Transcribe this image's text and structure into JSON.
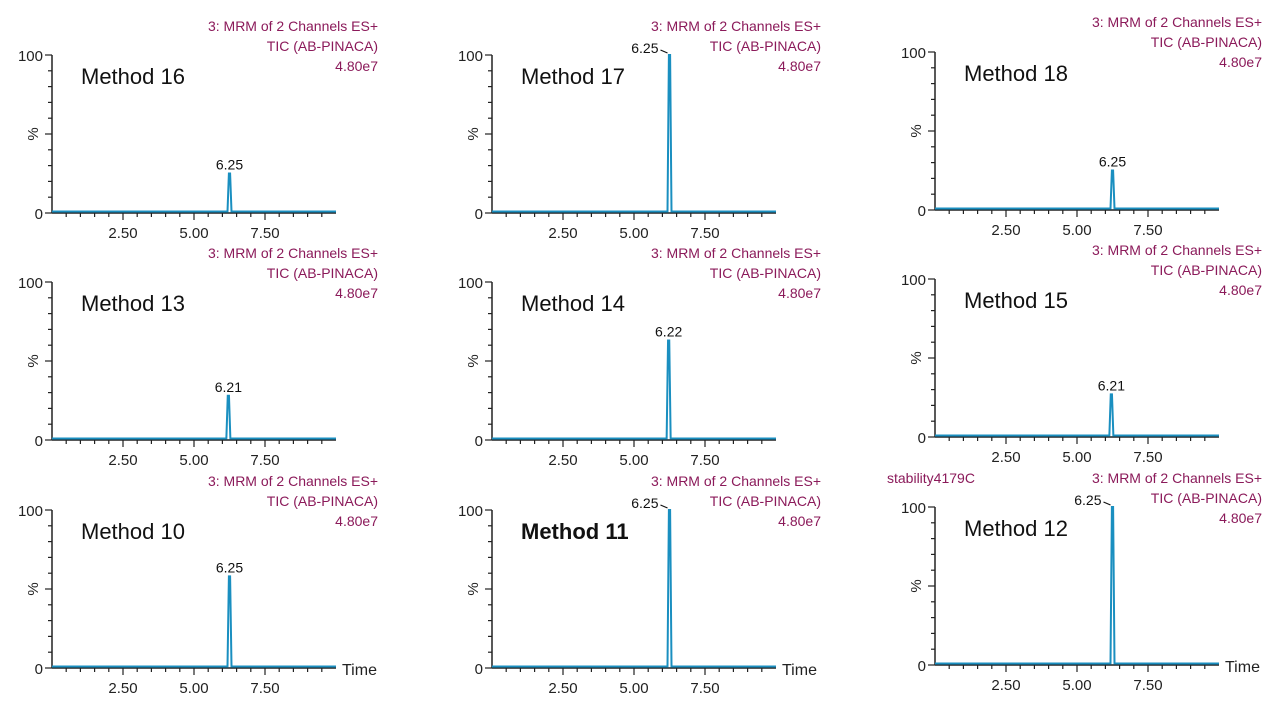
{
  "chart_data": [
    {
      "type": "line",
      "title": "Method 16",
      "header": [
        "3: MRM of 2 Channels ES+",
        "TIC (AB-PINACA)",
        "4.80e7"
      ],
      "peak_label": "6.25",
      "peak_rt": 6.25,
      "peak_height": 25,
      "xlim": [
        0,
        10
      ],
      "ylim": [
        0,
        100
      ],
      "xticks": [
        "2.50",
        "5.00",
        "7.50"
      ],
      "yticks": [
        "0",
        "100"
      ],
      "ylabel": "%",
      "xlabel": ""
    },
    {
      "type": "line",
      "title": "Method 17",
      "header": [
        "3: MRM of 2 Channels ES+",
        "TIC (AB-PINACA)",
        "4.80e7"
      ],
      "peak_label": "6.25",
      "peak_rt": 6.25,
      "peak_height": 100,
      "xlim": [
        0,
        10
      ],
      "ylim": [
        0,
        100
      ],
      "xticks": [
        "2.50",
        "5.00",
        "7.50"
      ],
      "yticks": [
        "0",
        "100"
      ],
      "ylabel": "%",
      "xlabel": ""
    },
    {
      "type": "line",
      "title": "Method 18",
      "header": [
        "3: MRM of 2 Channels ES+",
        "TIC (AB-PINACA)",
        "4.80e7"
      ],
      "peak_label": "6.25",
      "peak_rt": 6.25,
      "peak_height": 25,
      "xlim": [
        0,
        10
      ],
      "ylim": [
        0,
        100
      ],
      "xticks": [
        "2.50",
        "5.00",
        "7.50"
      ],
      "yticks": [
        "0",
        "100"
      ],
      "ylabel": "%",
      "xlabel": ""
    },
    {
      "type": "line",
      "title": "Method 13",
      "header": [
        "3: MRM of 2 Channels ES+",
        "TIC (AB-PINACA)",
        "4.80e7"
      ],
      "peak_label": "6.21",
      "peak_rt": 6.21,
      "peak_height": 28,
      "xlim": [
        0,
        10
      ],
      "ylim": [
        0,
        100
      ],
      "xticks": [
        "2.50",
        "5.00",
        "7.50"
      ],
      "yticks": [
        "0",
        "100"
      ],
      "ylabel": "%",
      "xlabel": ""
    },
    {
      "type": "line",
      "title": "Method 14",
      "header": [
        "3: MRM of 2 Channels ES+",
        "TIC (AB-PINACA)",
        "4.80e7"
      ],
      "peak_label": "6.22",
      "peak_rt": 6.22,
      "peak_height": 63,
      "xlim": [
        0,
        10
      ],
      "ylim": [
        0,
        100
      ],
      "xticks": [
        "2.50",
        "5.00",
        "7.50"
      ],
      "yticks": [
        "0",
        "100"
      ],
      "ylabel": "%",
      "xlabel": ""
    },
    {
      "type": "line",
      "title": "Method 15",
      "header": [
        "3: MRM of 2 Channels ES+",
        "TIC (AB-PINACA)",
        "4.80e7"
      ],
      "peak_label": "6.21",
      "peak_rt": 6.21,
      "peak_height": 27,
      "xlim": [
        0,
        10
      ],
      "ylim": [
        0,
        100
      ],
      "xticks": [
        "2.50",
        "5.00",
        "7.50"
      ],
      "yticks": [
        "0",
        "100"
      ],
      "ylabel": "%",
      "xlabel": ""
    },
    {
      "type": "line",
      "title": "Method 10",
      "header": [
        "3: MRM of 2 Channels ES+",
        "TIC (AB-PINACA)",
        "4.80e7"
      ],
      "peak_label": "6.25",
      "peak_rt": 6.25,
      "peak_height": 58,
      "xlim": [
        0,
        10
      ],
      "ylim": [
        0,
        100
      ],
      "xticks": [
        "2.50",
        "5.00",
        "7.50"
      ],
      "yticks": [
        "0",
        "100"
      ],
      "ylabel": "%",
      "xlabel": "Time"
    },
    {
      "type": "line",
      "title": "Method 11",
      "bold": true,
      "header": [
        "3: MRM of 2 Channels ES+",
        "TIC (AB-PINACA)",
        "4.80e7"
      ],
      "peak_label": "6.25",
      "peak_rt": 6.25,
      "peak_height": 100,
      "xlim": [
        0,
        10
      ],
      "ylim": [
        0,
        100
      ],
      "xticks": [
        "2.50",
        "5.00",
        "7.50"
      ],
      "yticks": [
        "0",
        "100"
      ],
      "ylabel": "%",
      "xlabel": "Time"
    },
    {
      "type": "line",
      "title": "Method 12",
      "sample": "stability4179C",
      "header": [
        "3: MRM of 2 Channels ES+",
        "TIC (AB-PINACA)",
        "4.80e7"
      ],
      "peak_label": "6.25",
      "peak_rt": 6.25,
      "peak_height": 100,
      "xlim": [
        0,
        10
      ],
      "ylim": [
        0,
        100
      ],
      "xticks": [
        "2.50",
        "5.00",
        "7.50"
      ],
      "yticks": [
        "0",
        "100"
      ],
      "ylabel": "%",
      "xlabel": "Time"
    }
  ],
  "colors": {
    "trace": "#1a8fc0",
    "header": "#8b1a5a"
  }
}
